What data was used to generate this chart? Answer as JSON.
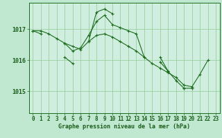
{
  "background_color": "#c0e8d0",
  "plot_bg_color": "#d0eee0",
  "grid_color": "#90c890",
  "line_color": "#1a6b1a",
  "title": "Graphe pression niveau de la mer (hPa)",
  "yticks": [
    1015,
    1016,
    1017
  ],
  "ylim": [
    1014.3,
    1017.85
  ],
  "xlim": [
    -0.5,
    23.5
  ],
  "tick_fontsize": 5.5,
  "title_fontsize": 6.0,
  "series": [
    {
      "x": [
        0,
        1,
        2,
        3,
        4,
        5,
        6,
        7,
        8,
        9,
        10,
        11,
        12,
        13,
        14,
        15,
        16,
        17,
        18,
        19,
        20,
        21,
        22
      ],
      "y": [
        1016.95,
        1016.95,
        1016.85,
        1016.7,
        1016.55,
        1016.45,
        1016.35,
        1016.6,
        1016.8,
        1016.85,
        1016.75,
        1016.6,
        1016.45,
        1016.3,
        1016.1,
        1015.9,
        1015.75,
        1015.6,
        1015.45,
        1015.2,
        1015.15,
        1015.55,
        1016.0
      ]
    },
    {
      "segments": [
        {
          "x": [
            0,
            1
          ],
          "y": [
            1016.95,
            1016.85
          ]
        },
        {
          "x": [
            4,
            5,
            6,
            7,
            8,
            9,
            10,
            11,
            12,
            13,
            14
          ],
          "y": [
            1016.55,
            1016.3,
            1016.4,
            1016.8,
            1017.25,
            1017.45,
            1017.15,
            1017.05,
            1016.95,
            1016.85,
            1016.1
          ]
        },
        {
          "x": [
            16,
            17,
            18,
            19,
            20
          ],
          "y": [
            1015.95,
            1015.65,
            1015.35,
            1015.1,
            1015.1
          ]
        }
      ]
    },
    {
      "segments": [
        {
          "x": [
            4,
            5
          ],
          "y": [
            1016.1,
            1015.9
          ]
        },
        {
          "x": [
            7,
            8,
            9,
            10
          ],
          "y": [
            1016.6,
            1017.55,
            1017.65,
            1017.5
          ]
        },
        {
          "x": [
            16,
            17
          ],
          "y": [
            1016.1,
            1015.65
          ]
        },
        {
          "x": [
            19
          ],
          "y": [
            1015.1
          ]
        }
      ]
    }
  ]
}
